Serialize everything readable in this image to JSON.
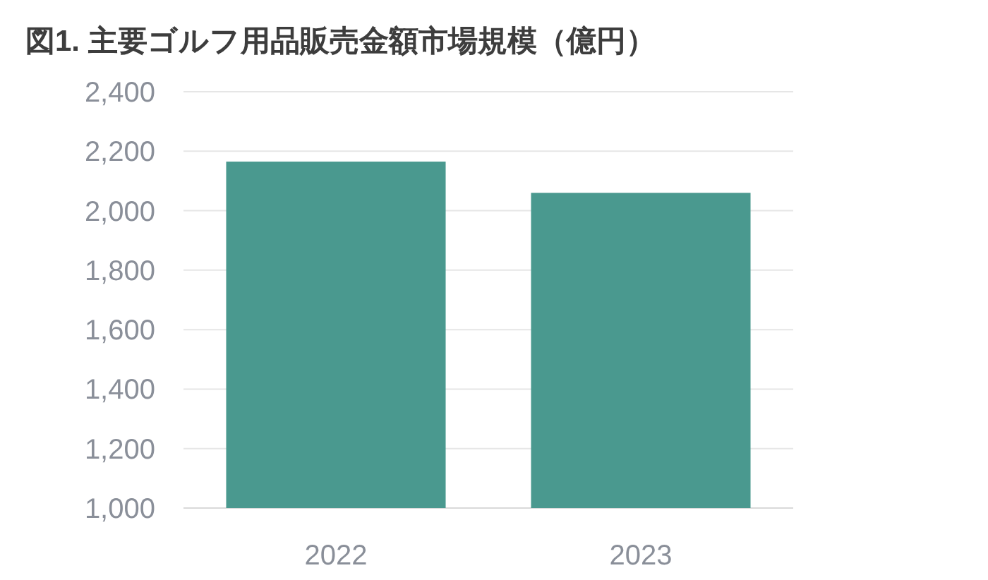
{
  "chart_data": {
    "type": "bar",
    "title": "図1. 主要ゴルフ用品販売金額市場規模（億円）",
    "categories": [
      "2022",
      "2023"
    ],
    "series": [
      {
        "color": "#4a998f",
        "values": [
          2165,
          2060
        ]
      }
    ],
    "ylim": [
      1000,
      2400
    ],
    "yticks": [
      {
        "value": 1000,
        "label": "1,000"
      },
      {
        "value": 1200,
        "label": "1,200"
      },
      {
        "value": 1400,
        "label": "1,400"
      },
      {
        "value": 1600,
        "label": "1,600"
      },
      {
        "value": 1800,
        "label": "1,800"
      },
      {
        "value": 2000,
        "label": "2,000"
      },
      {
        "value": 2200,
        "label": "2,200"
      },
      {
        "value": 2400,
        "label": "2,400"
      }
    ],
    "grid": "y"
  }
}
